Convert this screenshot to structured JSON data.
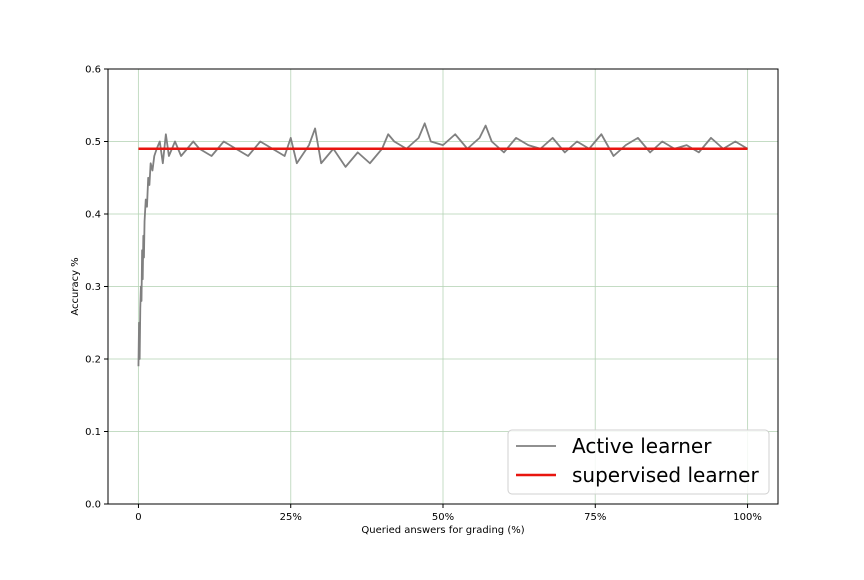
{
  "chart_data": {
    "type": "line",
    "title": "",
    "xlabel": "Queried answers for grading (%)",
    "ylabel": "Accuracy %",
    "xlim": [
      -5,
      105
    ],
    "ylim": [
      0.0,
      0.6
    ],
    "grid": true,
    "grid_color": "#b5d3b5",
    "legend_position": "lower-right",
    "x_ticks": [
      {
        "value": 0,
        "label": "0"
      },
      {
        "value": 25,
        "label": "25%"
      },
      {
        "value": 50,
        "label": "50%"
      },
      {
        "value": 75,
        "label": "75%"
      },
      {
        "value": 100,
        "label": "100%"
      }
    ],
    "y_ticks": [
      {
        "value": 0.0,
        "label": "0.0"
      },
      {
        "value": 0.1,
        "label": "0.1"
      },
      {
        "value": 0.2,
        "label": "0.2"
      },
      {
        "value": 0.3,
        "label": "0.3"
      },
      {
        "value": 0.4,
        "label": "0.4"
      },
      {
        "value": 0.5,
        "label": "0.5"
      },
      {
        "value": 0.6,
        "label": "0.6"
      }
    ],
    "series": [
      {
        "name": "Active learner",
        "color": "#808080",
        "x": [
          0,
          0.1,
          0.2,
          0.3,
          0.4,
          0.5,
          0.6,
          0.7,
          0.8,
          0.9,
          1.0,
          1.2,
          1.4,
          1.6,
          1.8,
          2.0,
          2.3,
          2.6,
          3.0,
          3.5,
          4.0,
          4.5,
          5.0,
          6,
          7,
          8,
          9,
          10,
          12,
          14,
          16,
          18,
          20,
          22,
          24,
          25,
          26,
          28,
          29,
          30,
          32,
          34,
          36,
          38,
          40,
          41,
          42,
          44,
          46,
          47,
          48,
          50,
          52,
          54,
          56,
          57,
          58,
          60,
          62,
          64,
          66,
          68,
          70,
          72,
          74,
          76,
          78,
          80,
          82,
          84,
          86,
          88,
          90,
          92,
          94,
          96,
          98,
          100
        ],
        "y": [
          0.19,
          0.25,
          0.2,
          0.27,
          0.3,
          0.28,
          0.35,
          0.31,
          0.37,
          0.34,
          0.39,
          0.42,
          0.41,
          0.45,
          0.44,
          0.47,
          0.46,
          0.48,
          0.49,
          0.5,
          0.47,
          0.51,
          0.48,
          0.5,
          0.48,
          0.49,
          0.5,
          0.49,
          0.48,
          0.5,
          0.49,
          0.48,
          0.5,
          0.49,
          0.48,
          0.505,
          0.47,
          0.495,
          0.518,
          0.47,
          0.49,
          0.465,
          0.485,
          0.47,
          0.49,
          0.51,
          0.5,
          0.49,
          0.505,
          0.525,
          0.5,
          0.495,
          0.51,
          0.49,
          0.505,
          0.522,
          0.5,
          0.485,
          0.505,
          0.495,
          0.49,
          0.505,
          0.485,
          0.5,
          0.49,
          0.51,
          0.48,
          0.495,
          0.505,
          0.485,
          0.5,
          0.49,
          0.495,
          0.485,
          0.505,
          0.49,
          0.5,
          0.49
        ]
      },
      {
        "name": "supervised learner",
        "color": "#e8150f",
        "x": [
          0,
          100
        ],
        "y": [
          0.49,
          0.49
        ]
      }
    ]
  }
}
